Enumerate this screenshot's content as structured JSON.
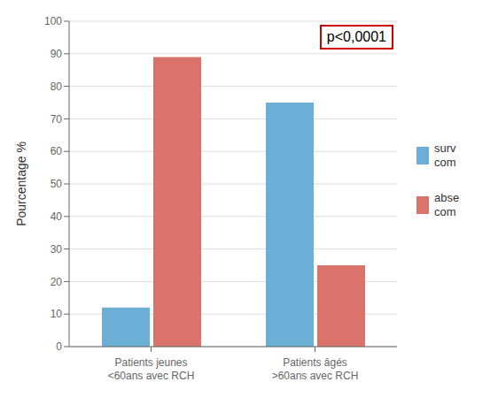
{
  "chart_data": {
    "type": "bar",
    "categories": [
      "Patients jeunes\n<60ans avec RCH",
      "Patients âgés\n>60ans avec RCH"
    ],
    "series": [
      {
        "name": "surv\ncom",
        "color": "#6baed6",
        "values": [
          12,
          75
        ]
      },
      {
        "name": "abse\ncom",
        "color": "#d9736b",
        "values": [
          89,
          25
        ]
      }
    ],
    "ylabel": "Pourcentage %",
    "ylim": [
      0,
      100
    ],
    "yticks": [
      0,
      10,
      20,
      30,
      40,
      50,
      60,
      70,
      80,
      90,
      100
    ],
    "grid": true,
    "legend": "right",
    "annotations": [
      {
        "text": "p<0,0001",
        "color": "#cc0000"
      }
    ]
  }
}
